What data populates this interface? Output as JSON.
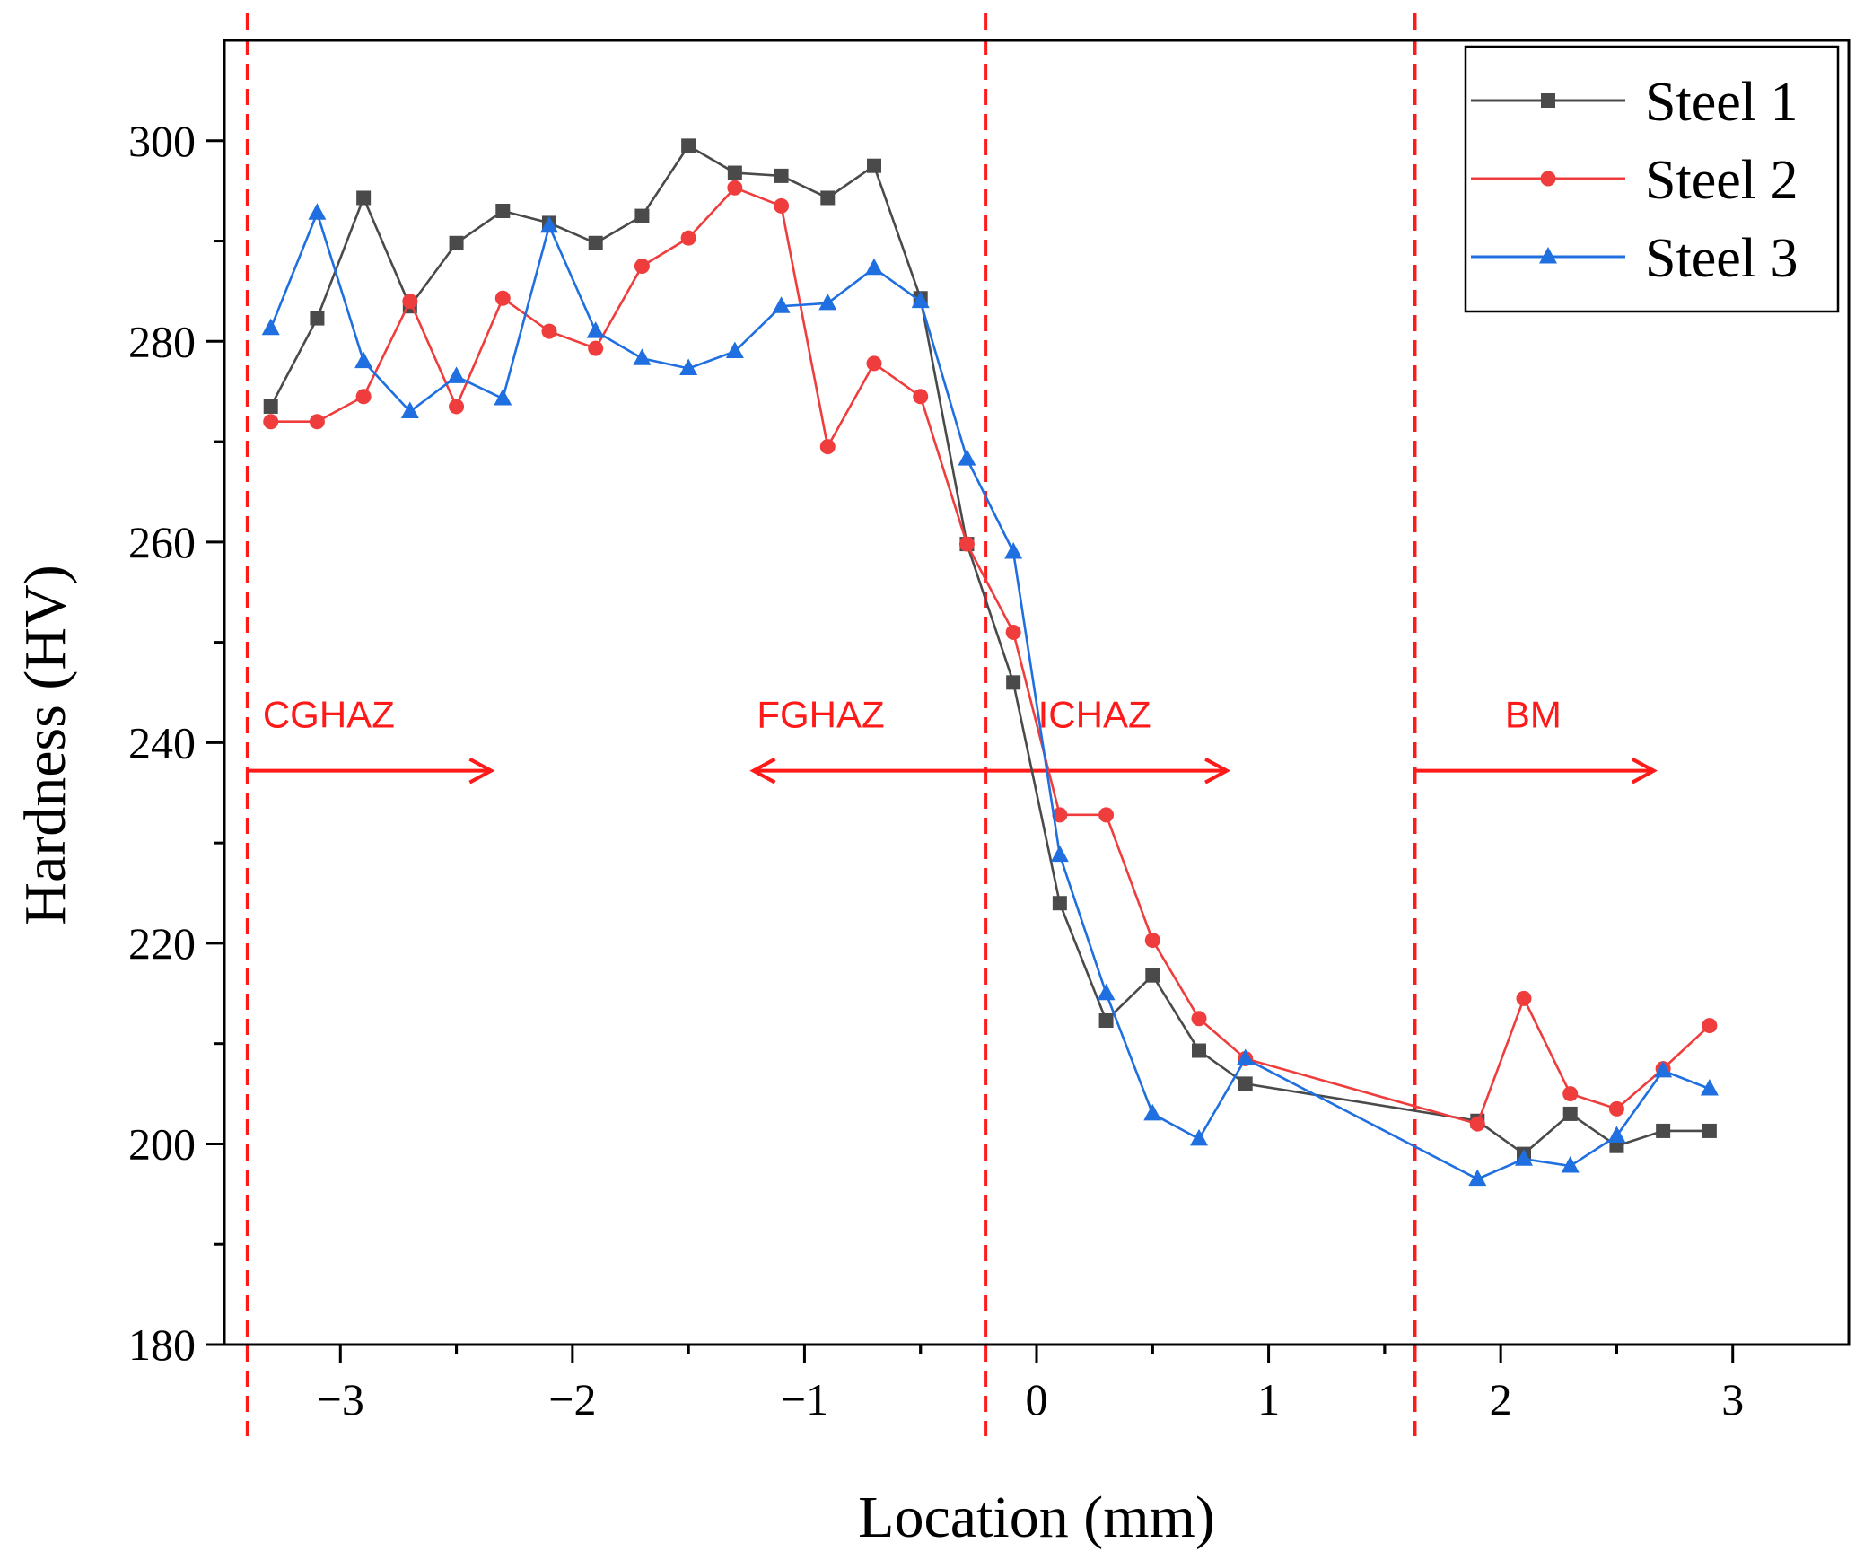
{
  "chart_data": {
    "type": "line",
    "title": "",
    "xlabel": "Location (mm)",
    "ylabel": "Hardness (HV)",
    "xlim": [
      -3.5,
      3.5
    ],
    "ylim": [
      180,
      310
    ],
    "x_ticks": [
      -3,
      -2,
      -1,
      0,
      1,
      2,
      3
    ],
    "x_tick_labels": [
      "−3",
      "−2",
      "−1",
      "0",
      "1",
      "2",
      "3"
    ],
    "y_ticks": [
      180,
      200,
      220,
      240,
      260,
      280,
      300
    ],
    "y_tick_labels": [
      "180",
      "200",
      "220",
      "240",
      "260",
      "280",
      "300"
    ],
    "grid": false,
    "legend_position": "top-right",
    "series": [
      {
        "name": "Steel 1",
        "color": "#4a4a4a",
        "marker": "square",
        "points": [
          [
            -3.3,
            273.5
          ],
          [
            -3.1,
            282.3
          ],
          [
            -2.9,
            294.3
          ],
          [
            -2.7,
            283.5
          ],
          [
            -2.5,
            289.8
          ],
          [
            -2.3,
            293.0
          ],
          [
            -2.1,
            291.8
          ],
          [
            -1.9,
            289.8
          ],
          [
            -1.7,
            292.5
          ],
          [
            -1.5,
            299.5
          ],
          [
            -1.3,
            296.8
          ],
          [
            -1.1,
            296.5
          ],
          [
            -0.9,
            294.3
          ],
          [
            -0.7,
            297.5
          ],
          [
            -0.5,
            284.3
          ],
          [
            -0.3,
            259.8
          ],
          [
            -0.1,
            246.0
          ],
          [
            0.1,
            224.0
          ],
          [
            0.3,
            212.3
          ],
          [
            0.5,
            216.8
          ],
          [
            0.7,
            209.3
          ],
          [
            0.9,
            206.0
          ],
          [
            1.9,
            202.3
          ],
          [
            2.1,
            199.0
          ],
          [
            2.3,
            203.0
          ],
          [
            2.5,
            199.8
          ],
          [
            2.7,
            201.3
          ],
          [
            2.9,
            201.3
          ]
        ]
      },
      {
        "name": "Steel 2",
        "color": "#ef3d3d",
        "marker": "circle",
        "points": [
          [
            -3.3,
            272.0
          ],
          [
            -3.1,
            272.0
          ],
          [
            -2.9,
            274.5
          ],
          [
            -2.7,
            284.0
          ],
          [
            -2.5,
            273.5
          ],
          [
            -2.3,
            284.3
          ],
          [
            -2.1,
            281.0
          ],
          [
            -1.9,
            279.3
          ],
          [
            -1.7,
            287.5
          ],
          [
            -1.5,
            290.3
          ],
          [
            -1.3,
            295.3
          ],
          [
            -1.1,
            293.5
          ],
          [
            -0.9,
            269.5
          ],
          [
            -0.7,
            277.8
          ],
          [
            -0.5,
            274.5
          ],
          [
            -0.3,
            259.8
          ],
          [
            -0.1,
            251.0
          ],
          [
            0.1,
            232.8
          ],
          [
            0.3,
            232.8
          ],
          [
            0.5,
            220.3
          ],
          [
            0.7,
            212.5
          ],
          [
            0.9,
            208.5
          ],
          [
            1.9,
            202.0
          ],
          [
            2.1,
            214.5
          ],
          [
            2.3,
            205.0
          ],
          [
            2.5,
            203.5
          ],
          [
            2.7,
            207.5
          ],
          [
            2.9,
            211.8
          ]
        ]
      },
      {
        "name": "Steel 3",
        "color": "#1f6fe0",
        "marker": "triangle",
        "points": [
          [
            -3.3,
            281.3
          ],
          [
            -3.1,
            292.8
          ],
          [
            -2.9,
            278.0
          ],
          [
            -2.7,
            273.0
          ],
          [
            -2.5,
            276.5
          ],
          [
            -2.3,
            274.3
          ],
          [
            -2.1,
            291.5
          ],
          [
            -1.9,
            281.0
          ],
          [
            -1.7,
            278.3
          ],
          [
            -1.5,
            277.3
          ],
          [
            -1.3,
            279.0
          ],
          [
            -1.1,
            283.5
          ],
          [
            -0.9,
            283.8
          ],
          [
            -0.7,
            287.3
          ],
          [
            -0.5,
            284.0
          ],
          [
            -0.3,
            268.3
          ],
          [
            -0.1,
            259.0
          ],
          [
            0.1,
            228.8
          ],
          [
            0.3,
            215.0
          ],
          [
            0.5,
            203.0
          ],
          [
            0.7,
            200.5
          ],
          [
            0.9,
            208.5
          ],
          [
            1.9,
            196.5
          ],
          [
            2.1,
            198.5
          ],
          [
            2.3,
            197.8
          ],
          [
            2.5,
            200.8
          ],
          [
            2.7,
            207.3
          ],
          [
            2.9,
            205.5
          ]
        ]
      }
    ],
    "zone_boundaries": [
      -3.4,
      -0.22,
      1.63
    ],
    "annotations": [
      {
        "text": "CGHAZ",
        "x": -3.05,
        "y": 241.5,
        "arrow": "right",
        "arrow_from": -3.4,
        "arrow_to": -2.35,
        "arrow_y": 237.2
      },
      {
        "text": "FGHAZ",
        "x": -0.93,
        "y": 241.5,
        "arrow": "left",
        "arrow_from": -0.22,
        "arrow_to": -1.22,
        "arrow_y": 237.2
      },
      {
        "text": "ICHAZ",
        "x": 0.25,
        "y": 241.5,
        "arrow": "right",
        "arrow_from": -0.22,
        "arrow_to": 0.82,
        "arrow_y": 237.2
      },
      {
        "text": "BM",
        "x": 2.14,
        "y": 241.5,
        "arrow": "right",
        "arrow_from": 1.63,
        "arrow_to": 2.66,
        "arrow_y": 237.2
      }
    ],
    "annotation_color": "#ff1a1a"
  }
}
